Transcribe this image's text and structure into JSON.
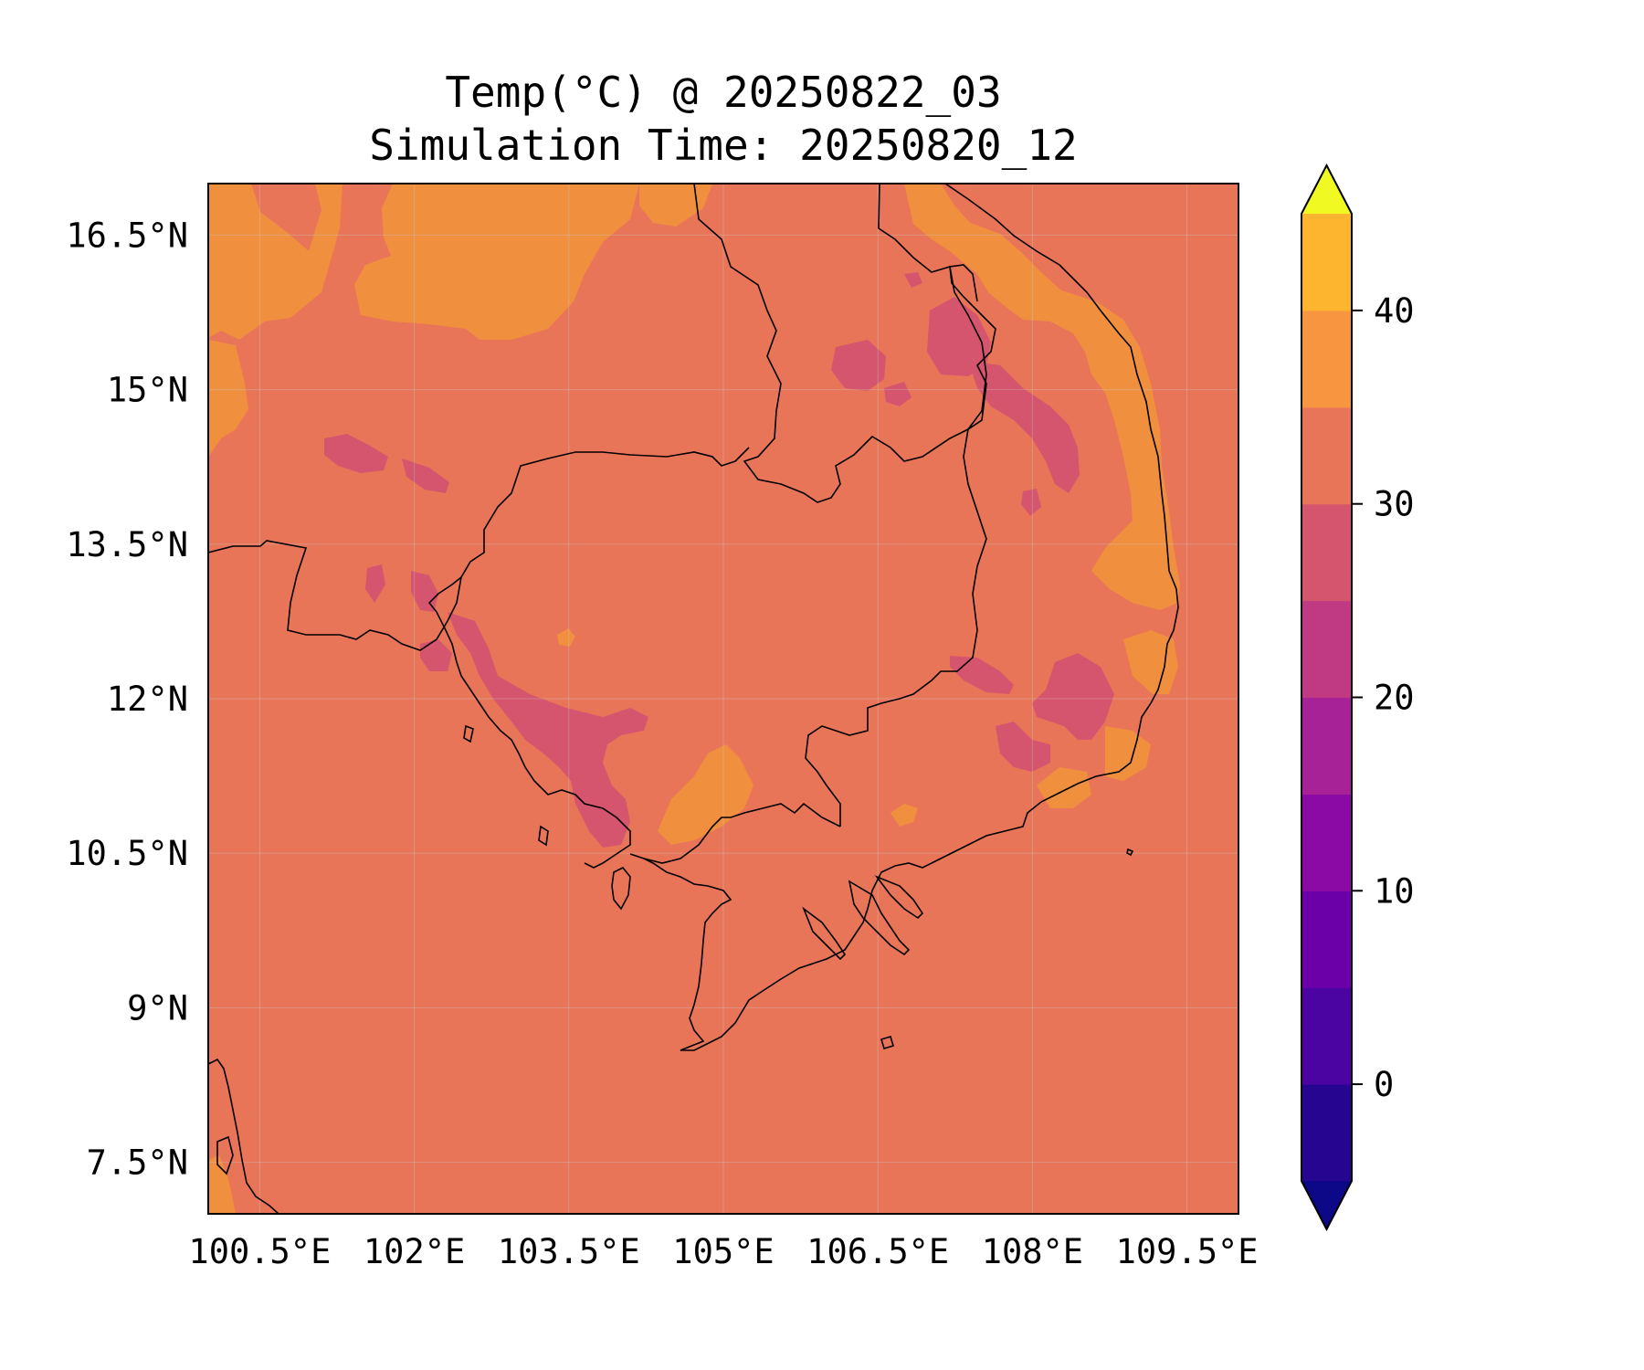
{
  "title": {
    "line1": "Temp(°C) @ 20250822_03",
    "line2": "Simulation Time: 20250820_12"
  },
  "map": {
    "variable": "Temp(°C)",
    "projection": "PlateCarree",
    "lon_range": [
      100,
      110
    ],
    "lat_range": [
      7,
      17
    ],
    "lon_ticks": [
      {
        "value": 100.5,
        "label": "100.5°E"
      },
      {
        "value": 102,
        "label": "102°E"
      },
      {
        "value": 103.5,
        "label": "103.5°E"
      },
      {
        "value": 105,
        "label": "105°E"
      },
      {
        "value": 106.5,
        "label": "106.5°E"
      },
      {
        "value": 108,
        "label": "108°E"
      },
      {
        "value": 109.5,
        "label": "109.5°E"
      }
    ],
    "lat_ticks": [
      {
        "value": 16.5,
        "label": "16.5°N"
      },
      {
        "value": 15,
        "label": "15°N"
      },
      {
        "value": 13.5,
        "label": "13.5°N"
      },
      {
        "value": 12,
        "label": "12°N"
      },
      {
        "value": 10.5,
        "label": "10.5°N"
      },
      {
        "value": 9,
        "label": "9°N"
      },
      {
        "value": 7.5,
        "label": "7.5°N"
      }
    ],
    "gridlines": true,
    "coastlines": true,
    "borders": true,
    "background_level_c": "25-30",
    "background_color": "#e97558"
  },
  "colorbar": {
    "orientation": "vertical",
    "extend": "both",
    "levels": [
      -5,
      0,
      5,
      10,
      15,
      20,
      25,
      30,
      35,
      40,
      45
    ],
    "colors": [
      "#260591",
      "#4b03a1",
      "#6b00a8",
      "#8b0aa5",
      "#a72197",
      "#c03a83",
      "#d5546e",
      "#e97558",
      "#f89540",
      "#fdb42f",
      "#f0f921"
    ],
    "under_color": "#0d0887",
    "over_color": "#f0f921",
    "tick_values": [
      0,
      10,
      20,
      30,
      40
    ],
    "tick_labels": [
      "0",
      "10",
      "20",
      "30",
      "40"
    ]
  }
}
